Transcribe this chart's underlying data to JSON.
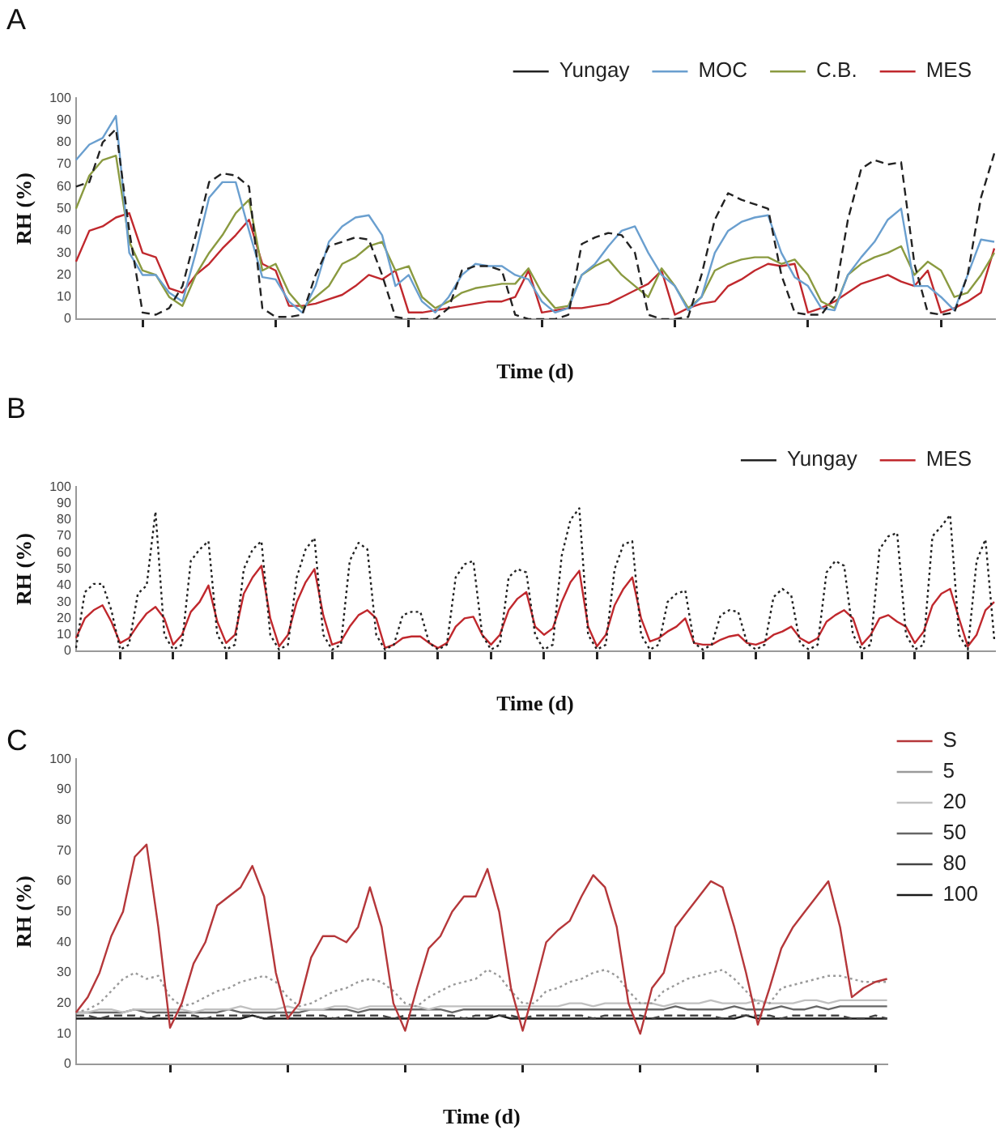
{
  "chart_data": [
    {
      "type": "line",
      "title": "A",
      "xlabel": "Time (d)",
      "ylabel": "RH (%)",
      "legend": "top right",
      "marker": "none",
      "ylim": [
        0,
        100
      ],
      "yticks": [
        0,
        10,
        20,
        30,
        40,
        50,
        60,
        70,
        80,
        90,
        100
      ],
      "categories": [
        null,
        null,
        null,
        null,
        null,
        null,
        null,
        null,
        null,
        null,
        null,
        null,
        null,
        null,
        null,
        null,
        null,
        null,
        null,
        null,
        null,
        null,
        null,
        null,
        null,
        null,
        null,
        null,
        null,
        null,
        null,
        null,
        null,
        null,
        null,
        null,
        null,
        null,
        null,
        null,
        null,
        null,
        null,
        null,
        null,
        null,
        null,
        null,
        null,
        null,
        null,
        null,
        null,
        null,
        null,
        null,
        null,
        null,
        null,
        null,
        null,
        null,
        null,
        null,
        null,
        null,
        null,
        null,
        null,
        null
      ],
      "series": [
        {
          "name": "Yungay",
          "color": "#222222",
          "line_style": "dashed",
          "values": [
            60,
            62,
            80,
            86,
            40,
            3,
            2,
            5,
            15,
            38,
            62,
            66,
            65,
            60,
            5,
            1,
            1,
            2,
            20,
            33,
            35,
            37,
            36,
            20,
            1,
            0,
            0,
            0,
            5,
            22,
            24,
            24,
            22,
            2,
            0,
            0,
            0,
            2,
            34,
            37,
            39,
            38,
            30,
            2,
            0,
            0,
            1,
            20,
            45,
            57,
            54,
            52,
            50,
            20,
            3,
            2,
            2,
            10,
            45,
            68,
            72,
            70,
            71,
            25,
            3,
            2,
            3,
            20,
            55,
            75
          ]
        },
        {
          "name": "MOC",
          "color": "#6a9fcf",
          "line_style": "solid",
          "values": [
            72,
            79,
            82,
            92,
            30,
            20,
            20,
            12,
            8,
            30,
            55,
            62,
            62,
            40,
            19,
            18,
            8,
            3,
            15,
            35,
            42,
            46,
            47,
            38,
            15,
            20,
            8,
            3,
            10,
            20,
            25,
            24,
            24,
            20,
            18,
            8,
            3,
            5,
            20,
            25,
            33,
            40,
            42,
            30,
            20,
            15,
            4,
            10,
            30,
            40,
            44,
            46,
            47,
            30,
            19,
            15,
            5,
            4,
            20,
            28,
            35,
            45,
            50,
            15,
            15,
            10,
            4,
            20,
            36,
            35
          ]
        },
        {
          "name": "C.B.",
          "color": "#8a9a40",
          "line_style": "solid",
          "values": [
            50,
            65,
            72,
            74,
            35,
            22,
            20,
            10,
            6,
            20,
            30,
            38,
            48,
            54,
            22,
            25,
            12,
            5,
            10,
            15,
            25,
            28,
            33,
            35,
            22,
            24,
            10,
            5,
            8,
            12,
            14,
            15,
            16,
            16,
            23,
            12,
            5,
            6,
            20,
            24,
            27,
            20,
            15,
            10,
            23,
            15,
            5,
            10,
            22,
            25,
            27,
            28,
            28,
            25,
            27,
            20,
            8,
            5,
            20,
            25,
            28,
            30,
            33,
            20,
            26,
            22,
            10,
            12,
            20,
            30
          ]
        },
        {
          "name": "MES",
          "color": "#c0282d",
          "line_style": "solid",
          "values": [
            26,
            40,
            42,
            46,
            48,
            30,
            28,
            14,
            12,
            20,
            25,
            32,
            38,
            45,
            25,
            22,
            6,
            6,
            7,
            9,
            11,
            15,
            20,
            18,
            22,
            3,
            3,
            4,
            5,
            6,
            7,
            8,
            8,
            10,
            22,
            3,
            4,
            5,
            5,
            6,
            7,
            10,
            13,
            16,
            22,
            2,
            5,
            7,
            8,
            15,
            18,
            22,
            25,
            24,
            25,
            3,
            5,
            8,
            12,
            16,
            18,
            20,
            17,
            15,
            22,
            3,
            5,
            8,
            12,
            32
          ]
        }
      ]
    },
    {
      "type": "line",
      "title": "B",
      "xlabel": "Time (d)",
      "ylabel": "RH (%)",
      "legend": "top right",
      "marker": "none",
      "ylim": [
        0,
        100
      ],
      "yticks": [
        0,
        10,
        20,
        30,
        40,
        50,
        60,
        70,
        80,
        90,
        100
      ],
      "categories": [
        null,
        null,
        null,
        null,
        null,
        null,
        null,
        null,
        null,
        null,
        null,
        null,
        null,
        null,
        null,
        null,
        null,
        null,
        null,
        null,
        null,
        null,
        null,
        null,
        null,
        null,
        null,
        null,
        null,
        null,
        null,
        null,
        null,
        null,
        null,
        null,
        null,
        null,
        null,
        null,
        null,
        null,
        null,
        null,
        null,
        null,
        null,
        null,
        null,
        null,
        null,
        null,
        null,
        null,
        null,
        null,
        null,
        null,
        null,
        null,
        null,
        null,
        null,
        null,
        null,
        null,
        null,
        null,
        null,
        null,
        null,
        null,
        null,
        null,
        null,
        null,
        null,
        null,
        null,
        null,
        null,
        null,
        null,
        null,
        null,
        null,
        null,
        null,
        null,
        null,
        null,
        null,
        null,
        null,
        null,
        null,
        null,
        null,
        null,
        null,
        null,
        null,
        null,
        null,
        null
      ],
      "series": [
        {
          "name": "Yungay",
          "color": "#222222",
          "line_style": "dotted",
          "values": [
            2,
            36,
            41,
            41,
            25,
            1,
            4,
            35,
            40,
            85,
            10,
            1,
            4,
            55,
            62,
            67,
            10,
            1,
            4,
            50,
            62,
            67,
            10,
            1,
            4,
            45,
            62,
            69,
            10,
            1,
            4,
            55,
            66,
            62,
            10,
            1,
            4,
            22,
            24,
            24,
            5,
            1,
            4,
            45,
            53,
            55,
            10,
            1,
            4,
            45,
            50,
            48,
            10,
            1,
            4,
            58,
            80,
            87,
            10,
            1,
            4,
            50,
            65,
            67,
            10,
            1,
            4,
            30,
            35,
            37,
            5,
            1,
            4,
            22,
            25,
            24,
            5,
            1,
            4,
            33,
            38,
            34,
            5,
            1,
            4,
            48,
            55,
            52,
            10,
            1,
            4,
            62,
            70,
            72,
            10,
            1,
            4,
            70,
            76,
            83,
            10,
            1,
            55,
            68,
            7
          ]
        },
        {
          "name": "MES",
          "color": "#c0282d",
          "line_style": "solid",
          "values": [
            8,
            20,
            25,
            28,
            18,
            5,
            8,
            16,
            23,
            27,
            20,
            4,
            10,
            24,
            30,
            40,
            18,
            5,
            10,
            35,
            45,
            52,
            20,
            3,
            10,
            30,
            42,
            50,
            22,
            4,
            6,
            15,
            22,
            25,
            20,
            2,
            4,
            8,
            9,
            9,
            5,
            2,
            5,
            15,
            20,
            21,
            10,
            4,
            10,
            25,
            32,
            36,
            15,
            10,
            14,
            30,
            42,
            49,
            15,
            3,
            10,
            28,
            38,
            45,
            20,
            6,
            8,
            12,
            15,
            20,
            5,
            4,
            4,
            7,
            9,
            10,
            5,
            4,
            6,
            10,
            12,
            15,
            8,
            5,
            8,
            18,
            22,
            25,
            20,
            4,
            10,
            20,
            22,
            18,
            15,
            5,
            12,
            28,
            35,
            38,
            20,
            3,
            10,
            25,
            30
          ]
        }
      ]
    },
    {
      "type": "line",
      "title": "C",
      "xlabel": "Time (d)",
      "ylabel": "RH (%)",
      "legend": "right",
      "marker": "none",
      "ylim": [
        0,
        100
      ],
      "yticks": [
        0,
        10,
        20,
        30,
        40,
        50,
        60,
        70,
        80,
        90,
        100
      ],
      "categories": [
        null,
        null,
        null,
        null,
        null,
        null,
        null,
        null,
        null,
        null,
        null,
        null,
        null,
        null,
        null,
        null,
        null,
        null,
        null,
        null,
        null,
        null,
        null,
        null,
        null,
        null,
        null,
        null,
        null,
        null,
        null,
        null,
        null,
        null,
        null,
        null,
        null,
        null,
        null,
        null,
        null,
        null,
        null,
        null,
        null,
        null,
        null,
        null,
        null,
        null,
        null,
        null,
        null,
        null,
        null,
        null,
        null,
        null,
        null,
        null,
        null,
        null,
        null,
        null,
        null,
        null,
        null,
        null,
        null,
        null
      ],
      "series": [
        {
          "name": "S",
          "color": "#b5373a",
          "line_style": "solid",
          "values": [
            17,
            22,
            30,
            42,
            50,
            68,
            72,
            45,
            12,
            20,
            33,
            40,
            52,
            55,
            58,
            65,
            55,
            30,
            15,
            20,
            35,
            42,
            42,
            40,
            45,
            58,
            45,
            20,
            11,
            25,
            38,
            42,
            50,
            55,
            55,
            64,
            50,
            25,
            11,
            25,
            40,
            44,
            47,
            55,
            62,
            58,
            45,
            20,
            10,
            25,
            30,
            45,
            50,
            55,
            60,
            58,
            45,
            30,
            13,
            25,
            38,
            45,
            50,
            55,
            60,
            45,
            22,
            25,
            27,
            28
          ]
        },
        {
          "name": "5",
          "color": "#9a9a9a",
          "line_style": "dotted",
          "values": [
            17,
            18,
            20,
            24,
            28,
            30,
            28,
            29,
            22,
            19,
            20,
            22,
            24,
            25,
            27,
            28,
            29,
            27,
            22,
            19,
            20,
            22,
            24,
            25,
            27,
            28,
            27,
            24,
            20,
            19,
            22,
            24,
            26,
            27,
            28,
            31,
            29,
            24,
            20,
            20,
            24,
            25,
            27,
            28,
            30,
            31,
            29,
            24,
            20,
            20,
            24,
            26,
            28,
            29,
            30,
            31,
            28,
            24,
            20,
            20,
            25,
            26,
            27,
            28,
            29,
            29,
            28,
            27,
            27,
            27
          ]
        },
        {
          "name": "20",
          "color": "#c0c0c0",
          "line_style": "solid",
          "values": [
            17,
            17,
            18,
            18,
            17,
            18,
            18,
            18,
            18,
            18,
            17,
            18,
            18,
            18,
            19,
            18,
            18,
            18,
            19,
            18,
            18,
            18,
            19,
            19,
            18,
            19,
            19,
            19,
            19,
            19,
            18,
            19,
            19,
            19,
            19,
            19,
            19,
            19,
            19,
            19,
            19,
            19,
            20,
            20,
            19,
            20,
            20,
            20,
            20,
            20,
            19,
            20,
            20,
            20,
            21,
            20,
            20,
            20,
            21,
            20,
            20,
            20,
            21,
            21,
            20,
            21,
            21,
            21,
            21,
            21
          ]
        },
        {
          "name": "50",
          "color": "#666666",
          "line_style": "solid",
          "values": [
            17,
            17,
            17,
            17,
            17,
            18,
            17,
            17,
            17,
            17,
            17,
            17,
            17,
            18,
            17,
            17,
            17,
            17,
            17,
            17,
            18,
            18,
            18,
            18,
            17,
            18,
            18,
            18,
            18,
            18,
            18,
            18,
            17,
            18,
            18,
            18,
            18,
            18,
            18,
            18,
            18,
            18,
            18,
            18,
            18,
            18,
            18,
            18,
            18,
            18,
            18,
            19,
            18,
            18,
            18,
            18,
            19,
            18,
            18,
            18,
            19,
            18,
            18,
            19,
            18,
            19,
            19,
            19,
            19,
            19
          ]
        },
        {
          "name": "80",
          "color": "#444444",
          "line_style": "dashed",
          "values": [
            16,
            16,
            15,
            16,
            16,
            16,
            15,
            16,
            16,
            16,
            16,
            15,
            16,
            16,
            16,
            16,
            15,
            16,
            16,
            16,
            16,
            16,
            15,
            16,
            16,
            16,
            16,
            15,
            16,
            16,
            16,
            16,
            16,
            15,
            16,
            16,
            16,
            16,
            15,
            16,
            16,
            16,
            16,
            16,
            15,
            16,
            16,
            16,
            16,
            15,
            16,
            16,
            16,
            16,
            16,
            15,
            16,
            16,
            16,
            16,
            15,
            16,
            16,
            16,
            16,
            16,
            15,
            15,
            16,
            15
          ]
        },
        {
          "name": "100",
          "color": "#1a1a1a",
          "line_style": "solid",
          "values": [
            15,
            15,
            15,
            15,
            15,
            15,
            15,
            15,
            15,
            15,
            15,
            15,
            15,
            15,
            15,
            16,
            15,
            15,
            15,
            15,
            15,
            15,
            15,
            15,
            15,
            15,
            15,
            15,
            15,
            15,
            15,
            15,
            15,
            15,
            15,
            15,
            16,
            15,
            15,
            15,
            15,
            15,
            15,
            15,
            15,
            15,
            15,
            15,
            15,
            15,
            15,
            15,
            15,
            15,
            15,
            15,
            15,
            16,
            15,
            15,
            15,
            15,
            15,
            15,
            15,
            15,
            15,
            15,
            15,
            15
          ]
        }
      ]
    }
  ]
}
